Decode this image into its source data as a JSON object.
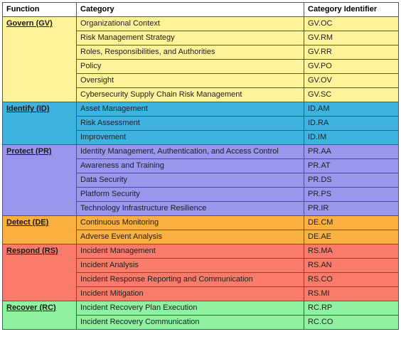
{
  "headers": {
    "function": "Function",
    "category": "Category",
    "identifier": "Category Identifier"
  },
  "colors": {
    "govern": "#fff39a",
    "identify": "#3fb3e0",
    "protect": "#9996ee",
    "detect": "#fbb040",
    "respond": "#fb7b6b",
    "recover": "#8ef2a0"
  },
  "functions": [
    {
      "name": "Govern (GV)",
      "categories": [
        {
          "name": "Organizational Context",
          "id": "GV.OC"
        },
        {
          "name": "Risk Management Strategy",
          "id": "GV.RM"
        },
        {
          "name": "Roles, Responsibilities, and Authorities",
          "id": "GV.RR"
        },
        {
          "name": "Policy",
          "id": "GV.PO"
        },
        {
          "name": "Oversight",
          "id": "GV.OV"
        },
        {
          "name": "Cybersecurity Supply Chain Risk Management",
          "id": "GV.SC"
        }
      ]
    },
    {
      "name": "Identify (ID)",
      "categories": [
        {
          "name": "Asset Management",
          "id": "ID.AM"
        },
        {
          "name": "Risk Assessment",
          "id": "ID.RA"
        },
        {
          "name": "Improvement",
          "id": "ID.IM"
        }
      ]
    },
    {
      "name": "Protect (PR)",
      "categories": [
        {
          "name": "Identity Management, Authentication, and Access Control",
          "id": "PR.AA"
        },
        {
          "name": "Awareness and Training",
          "id": "PR.AT"
        },
        {
          "name": "Data Security",
          "id": "PR.DS"
        },
        {
          "name": "Platform Security",
          "id": "PR.PS"
        },
        {
          "name": "Technology Infrastructure Resilience",
          "id": "PR.IR"
        }
      ]
    },
    {
      "name": "Detect (DE)",
      "categories": [
        {
          "name": "Continuous Monitoring",
          "id": "DE.CM"
        },
        {
          "name": "Adverse Event Analysis",
          "id": "DE.AE"
        }
      ]
    },
    {
      "name": "Respond (RS)",
      "categories": [
        {
          "name": "Incident Management",
          "id": "RS.MA"
        },
        {
          "name": "Incident Analysis",
          "id": "RS.AN"
        },
        {
          "name": "Incident Response Reporting and Communication",
          "id": "RS.CO"
        },
        {
          "name": "Incident Mitigation",
          "id": "RS.MI"
        }
      ]
    },
    {
      "name": "Recover (RC)",
      "categories": [
        {
          "name": "Incident Recovery Plan Execution",
          "id": "RC.RP"
        },
        {
          "name": "Incident Recovery Communication",
          "id": "RC.CO"
        }
      ]
    }
  ]
}
